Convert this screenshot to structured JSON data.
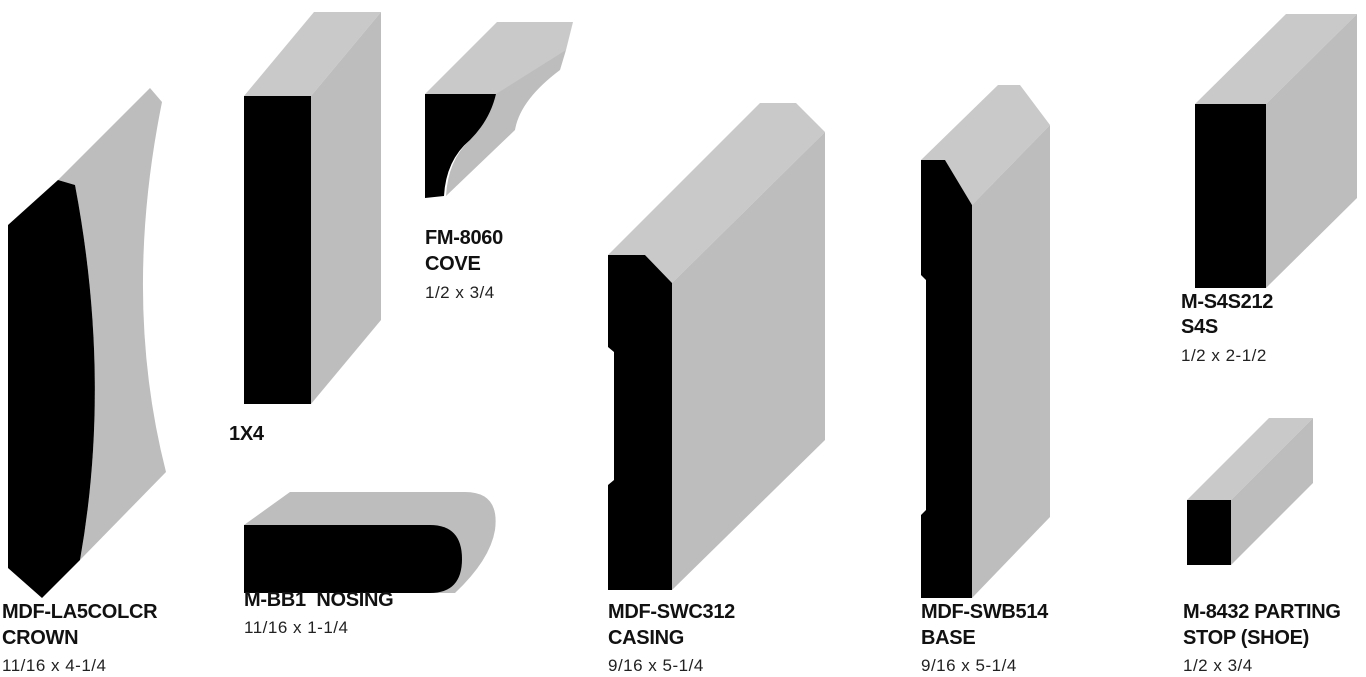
{
  "products": [
    {
      "code": "MDF-LA5COLCR",
      "name": "CROWN",
      "size": "11/16 x 4-1/4"
    },
    {
      "code": "1X4"
    },
    {
      "code": "FM-8060",
      "name": "COVE",
      "size": "1/2 x 3/4"
    },
    {
      "code": "M-BB1  NOSING",
      "size": "11/16 x 1-1/4"
    },
    {
      "code": "MDF-SWC312",
      "name": "CASING",
      "size": "9/16 x 5-1/4"
    },
    {
      "code": "MDF-SWB514",
      "name": "BASE",
      "size": "9/16 x 5-1/4"
    },
    {
      "code": "M-S4S212",
      "name": "S4S",
      "size": "1/2 x 2-1/2"
    },
    {
      "code": "M-8432 PARTING",
      "name": "STOP (SHOE)",
      "size": "1/2 x 3/4"
    }
  ]
}
